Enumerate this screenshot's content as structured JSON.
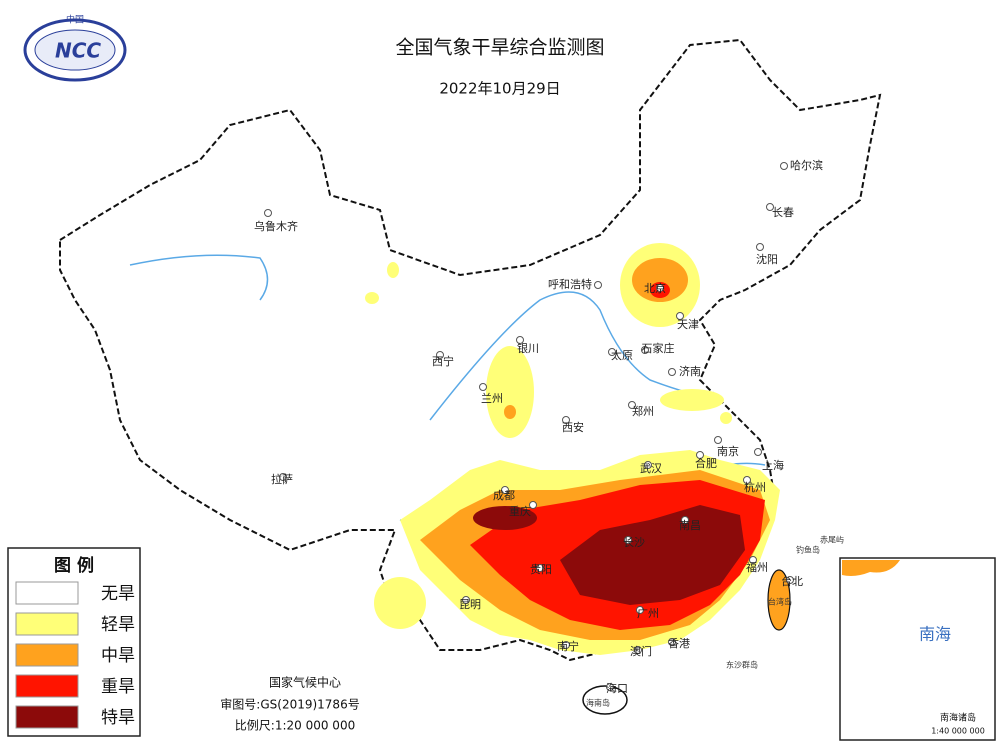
{
  "header": {
    "title": "全国气象干旱综合监测图",
    "date": "2022年10月29日"
  },
  "logo": {
    "top": "中国",
    "name": "NCC"
  },
  "legend": {
    "title": "图 例",
    "items": [
      {
        "label": "无旱",
        "color": "#ffffff"
      },
      {
        "label": "轻旱",
        "color": "#ffff78"
      },
      {
        "label": "中旱",
        "color": "#ffa21e"
      },
      {
        "label": "重旱",
        "color": "#ff1400"
      },
      {
        "label": "特旱",
        "color": "#8c0a0a"
      }
    ]
  },
  "cities": [
    "乌鲁木齐",
    "哈尔滨",
    "长春",
    "沈阳",
    "呼和浩特",
    "北京",
    "天津",
    "银川",
    "西宁",
    "兰州",
    "太原",
    "石家庄",
    "济南",
    "郑州",
    "西安",
    "南京",
    "合肥",
    "上海",
    "武汉",
    "杭州",
    "成都",
    "重庆",
    "长沙",
    "南昌",
    "拉萨",
    "贵阳",
    "昆明",
    "福州",
    "台北",
    "广州",
    "南宁",
    "澳门",
    "香港",
    "海口"
  ],
  "islands": [
    "钓鱼岛",
    "赤尾屿",
    "台湾岛",
    "东沙群岛",
    "海南岛"
  ],
  "inset": {
    "sea": "南海",
    "title": "南海诸岛",
    "scale": "1:40 000 000"
  },
  "footer": {
    "org": "国家气候中心",
    "approval": "审图号:GS(2019)1786号",
    "scale": "比例尺:1:20 000 000"
  }
}
